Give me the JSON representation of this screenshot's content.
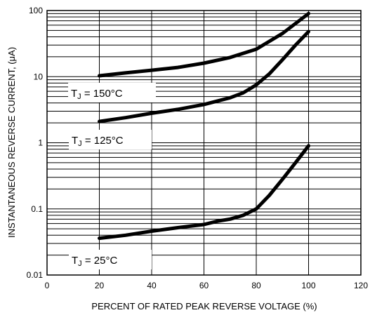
{
  "chart_data": {
    "type": "line",
    "xlabel": "PERCENT OF RATED PEAK REVERSE VOLTAGE  (%)",
    "ylabel": "INSTANTANEOUS REVERSE CURRENT, (μA)",
    "xlim": [
      0,
      120
    ],
    "ylim": [
      0.01,
      100
    ],
    "y_scale": "log",
    "grid": true,
    "x_ticks": [
      "0",
      "20",
      "40",
      "60",
      "80",
      "100",
      "120"
    ],
    "y_ticks": [
      "0.01",
      "0.1",
      "1",
      "10",
      "100"
    ],
    "series": [
      {
        "label_main": "T",
        "label_sub": "J",
        "label_rest": " = 150°C",
        "x": [
          20,
          30,
          40,
          50,
          60,
          70,
          80,
          90,
          100
        ],
        "y": [
          10.3,
          11.4,
          12.5,
          13.8,
          16,
          19.5,
          26,
          45,
          90
        ]
      },
      {
        "label_main": "T",
        "label_sub": "J",
        "label_rest": " = 125°C",
        "x": [
          20,
          30,
          40,
          50,
          60,
          70,
          75,
          80,
          85,
          90,
          95,
          100
        ],
        "y": [
          2.1,
          2.4,
          2.8,
          3.2,
          3.8,
          4.8,
          5.7,
          7.5,
          11,
          18,
          30,
          48
        ]
      },
      {
        "label_main": "T",
        "label_sub": "J",
        "label_rest": " = 25°C",
        "x": [
          20,
          30,
          40,
          50,
          60,
          65,
          70,
          75,
          80,
          85,
          90,
          95,
          100
        ],
        "y": [
          0.036,
          0.04,
          0.046,
          0.052,
          0.058,
          0.065,
          0.07,
          0.08,
          0.1,
          0.16,
          0.28,
          0.5,
          0.9
        ]
      }
    ]
  }
}
